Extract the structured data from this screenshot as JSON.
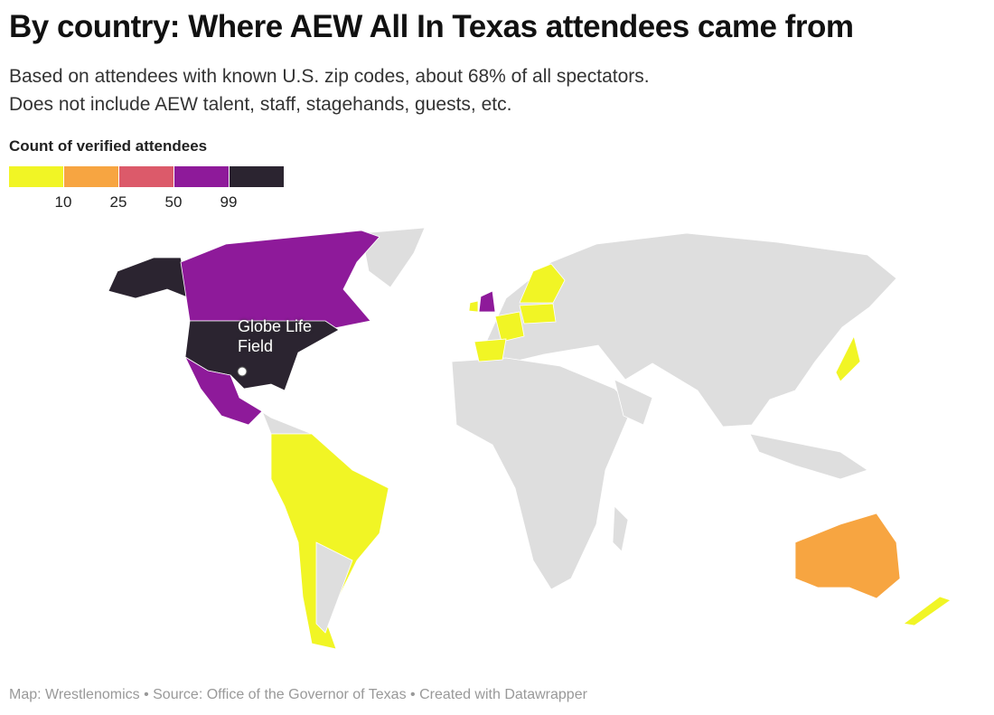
{
  "title": "By country: Where AEW All In Texas attendees came from",
  "subtitle": [
    "Based on attendees with known U.S. zip codes, about 68% of all spectators.",
    "Does not include AEW talent, staff, stagehands, guests, etc."
  ],
  "legend": {
    "title": "Count of verified attendees",
    "colors": [
      "#f1f525",
      "#f7a541",
      "#dc5a6a",
      "#8e1a9a",
      "#2b2430"
    ],
    "ticks": [
      10,
      25,
      50,
      99
    ]
  },
  "no_data_color": "#dedede",
  "annotation": "Globe Life Field",
  "footer": "Map: Wrestlenomics • Source: Office of the Governor of Texas • Created with Datawrapper"
}
